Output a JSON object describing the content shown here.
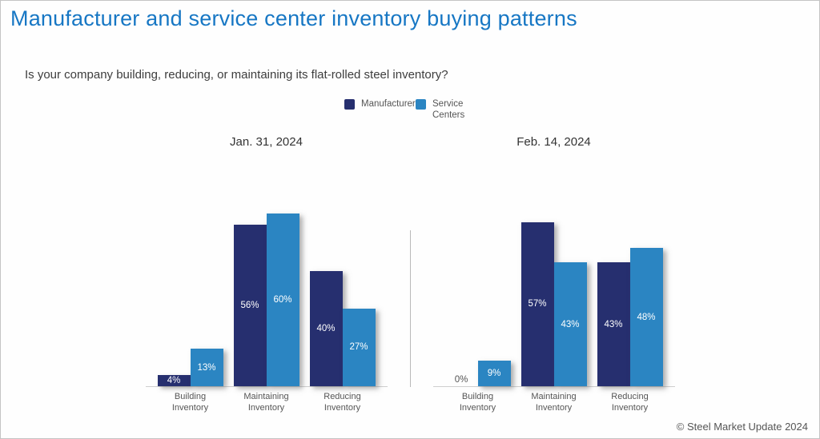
{
  "page": {
    "title": "Manufacturer and service center inventory buying patterns",
    "question": "Is your company building, reducing, or maintaining its flat-rolled steel inventory?",
    "footer": "© Steel Market Update 2024"
  },
  "colors": {
    "title_blue": "#1777C4",
    "manufacturers": "#262F6F",
    "service_centers": "#2B85C2",
    "zero_label": "#555555"
  },
  "legend": [
    {
      "label": "Manufacturers",
      "color": "#262F6F"
    },
    {
      "label": "Service Centers",
      "color": "#2B85C2"
    }
  ],
  "chart_data": [
    {
      "type": "bar",
      "title": "Jan. 31, 2024",
      "categories": [
        "Building Inventory",
        "Maintaining Inventory",
        "Reducing Inventory"
      ],
      "series": [
        {
          "name": "Manufacturers",
          "color": "#262F6F",
          "values": [
            4,
            56,
            40
          ]
        },
        {
          "name": "Service Centers",
          "color": "#2B85C2",
          "values": [
            13,
            60,
            27
          ]
        }
      ],
      "value_format": "percent",
      "ylim": [
        0,
        62
      ],
      "grid": false,
      "legend_position": "top-center"
    },
    {
      "type": "bar",
      "title": "Feb. 14, 2024",
      "categories": [
        "Building Inventory",
        "Maintaining Inventory",
        "Reducing Inventory"
      ],
      "series": [
        {
          "name": "Manufacturers",
          "color": "#262F6F",
          "values": [
            0,
            57,
            43
          ]
        },
        {
          "name": "Service Centers",
          "color": "#2B85C2",
          "values": [
            9,
            43,
            48
          ]
        }
      ],
      "value_format": "percent",
      "ylim": [
        0,
        62
      ],
      "grid": false,
      "legend_position": "top-center"
    }
  ]
}
